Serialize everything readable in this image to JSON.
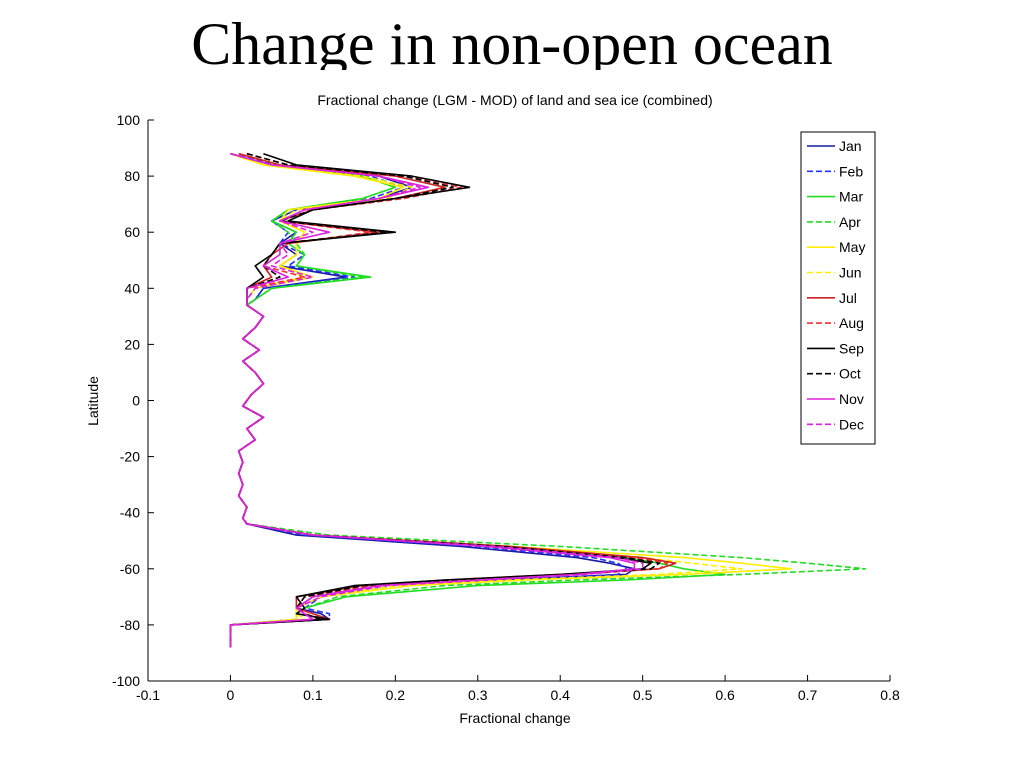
{
  "slide": {
    "title": "Change in non-open ocean"
  },
  "chart_data": {
    "type": "line",
    "title": "Fractional change (LGM - MOD) of land and sea ice (combined)",
    "xlabel": "Fractional change",
    "ylabel": "Latitude",
    "xlim": [
      -0.1,
      0.8
    ],
    "ylim": [
      -100,
      100
    ],
    "xticks": [
      -0.1,
      0,
      0.1,
      0.2,
      0.3,
      0.4,
      0.5,
      0.6,
      0.7,
      0.8
    ],
    "yticks": [
      100,
      80,
      60,
      40,
      20,
      0,
      -20,
      -40,
      -60,
      -80,
      -100
    ],
    "xtick_labels": [
      "-0.1",
      "0",
      "0.1",
      "0.2",
      "0.3",
      "0.4",
      "0.5",
      "0.6",
      "0.7",
      "0.8"
    ],
    "ytick_labels": [
      "100",
      "80",
      "60",
      "40",
      "20",
      "0",
      "-20",
      "-40",
      "-60",
      "-80",
      "-100"
    ],
    "legend_position": "top-right",
    "grid": false,
    "tropics": {
      "lat": [
        34,
        30,
        26,
        22,
        18,
        14,
        10,
        6,
        2,
        -2,
        -6,
        -10,
        -14,
        -18,
        -22,
        -26,
        -30,
        -34,
        -38,
        -42
      ],
      "x": [
        0.02,
        0.04,
        0.03,
        0.015,
        0.035,
        0.015,
        0.03,
        0.04,
        0.025,
        0.015,
        0.04,
        0.02,
        0.03,
        0.01,
        0.015,
        0.01,
        0.015,
        0.01,
        0.02,
        0.015
      ]
    },
    "series": [
      {
        "name": "Jan",
        "color": "#1a1aa6",
        "dash": false,
        "nh_lat": [
          88,
          84,
          80,
          76,
          72,
          68,
          64,
          60,
          56,
          52,
          48,
          44,
          40,
          36
        ],
        "nh_x": [
          0.0,
          0.05,
          0.18,
          0.22,
          0.18,
          0.08,
          0.05,
          0.08,
          0.06,
          0.08,
          0.06,
          0.14,
          0.04,
          0.03
        ],
        "sh_lat": [
          -44,
          -48,
          -52,
          -56,
          -58,
          -60,
          -62,
          -64,
          -66,
          -70,
          -74,
          -76,
          -78,
          -80,
          -84,
          -88
        ],
        "sh_x": [
          0.02,
          0.08,
          0.28,
          0.42,
          0.46,
          0.49,
          0.48,
          0.32,
          0.18,
          0.1,
          0.08,
          0.11,
          0.12,
          0.0,
          0.0,
          0.0
        ]
      },
      {
        "name": "Feb",
        "color": "#2233ff",
        "dash": true,
        "nh_lat": [
          88,
          84,
          80,
          76,
          72,
          68,
          64,
          60,
          56,
          52,
          48,
          44,
          40,
          36
        ],
        "nh_x": [
          0.0,
          0.06,
          0.17,
          0.21,
          0.17,
          0.08,
          0.05,
          0.07,
          0.06,
          0.09,
          0.07,
          0.15,
          0.04,
          0.03
        ],
        "sh_lat": [
          -44,
          -48,
          -52,
          -56,
          -58,
          -60,
          -62,
          -64,
          -66,
          -70,
          -74,
          -76,
          -78,
          -80,
          -84,
          -88
        ],
        "sh_x": [
          0.02,
          0.09,
          0.3,
          0.44,
          0.47,
          0.48,
          0.47,
          0.34,
          0.2,
          0.11,
          0.09,
          0.12,
          0.12,
          0.0,
          0.0,
          0.0
        ]
      },
      {
        "name": "Mar",
        "color": "#22dd22",
        "dash": false,
        "nh_lat": [
          88,
          84,
          80,
          76,
          72,
          68,
          64,
          60,
          56,
          52,
          48,
          44,
          40,
          36
        ],
        "nh_x": [
          0.0,
          0.05,
          0.16,
          0.2,
          0.16,
          0.07,
          0.05,
          0.08,
          0.07,
          0.09,
          0.08,
          0.17,
          0.05,
          0.03
        ],
        "sh_lat": [
          -44,
          -48,
          -52,
          -56,
          -58,
          -60,
          -62,
          -64,
          -66,
          -70,
          -74,
          -76,
          -78,
          -80,
          -84,
          -88
        ],
        "sh_x": [
          0.02,
          0.1,
          0.33,
          0.48,
          0.52,
          0.55,
          0.6,
          0.48,
          0.3,
          0.14,
          0.09,
          0.08,
          0.08,
          0.0,
          0.0,
          0.0
        ]
      },
      {
        "name": "Apr",
        "color": "#22dd22",
        "dash": true,
        "nh_lat": [
          88,
          84,
          80,
          76,
          72,
          68,
          64,
          60,
          56,
          52,
          48,
          44,
          40,
          36
        ],
        "nh_x": [
          0.0,
          0.05,
          0.16,
          0.2,
          0.16,
          0.07,
          0.05,
          0.07,
          0.08,
          0.09,
          0.08,
          0.16,
          0.05,
          0.03
        ],
        "sh_lat": [
          -44,
          -48,
          -52,
          -56,
          -58,
          -60,
          -62,
          -64,
          -66,
          -70,
          -74,
          -76,
          -78,
          -80,
          -84,
          -88
        ],
        "sh_x": [
          0.02,
          0.12,
          0.4,
          0.62,
          0.7,
          0.77,
          0.62,
          0.42,
          0.26,
          0.13,
          0.09,
          0.08,
          0.08,
          0.0,
          0.0,
          0.0
        ]
      },
      {
        "name": "May",
        "color": "#ffee00",
        "dash": false,
        "nh_lat": [
          88,
          84,
          80,
          76,
          72,
          68,
          64,
          60,
          56,
          52,
          48,
          44,
          40,
          36
        ],
        "nh_x": [
          0.0,
          0.04,
          0.15,
          0.21,
          0.18,
          0.07,
          0.06,
          0.09,
          0.08,
          0.08,
          0.06,
          0.1,
          0.03,
          0.02
        ],
        "sh_lat": [
          -44,
          -48,
          -52,
          -56,
          -58,
          -60,
          -62,
          -64,
          -66,
          -70,
          -74,
          -76,
          -78,
          -80,
          -84,
          -88
        ],
        "sh_x": [
          0.02,
          0.1,
          0.34,
          0.55,
          0.62,
          0.68,
          0.55,
          0.36,
          0.22,
          0.11,
          0.08,
          0.08,
          0.08,
          0.0,
          0.0,
          0.0
        ]
      },
      {
        "name": "Jun",
        "color": "#ffee00",
        "dash": true,
        "nh_lat": [
          88,
          84,
          80,
          76,
          72,
          68,
          64,
          60,
          56,
          52,
          48,
          44,
          40,
          36
        ],
        "nh_x": [
          0.0,
          0.04,
          0.16,
          0.22,
          0.19,
          0.08,
          0.06,
          0.09,
          0.08,
          0.08,
          0.06,
          0.09,
          0.03,
          0.02
        ],
        "sh_lat": [
          -44,
          -48,
          -52,
          -56,
          -58,
          -60,
          -62,
          -64,
          -66,
          -70,
          -74,
          -76,
          -78,
          -80,
          -84,
          -88
        ],
        "sh_x": [
          0.02,
          0.1,
          0.32,
          0.5,
          0.56,
          0.62,
          0.52,
          0.34,
          0.2,
          0.11,
          0.08,
          0.08,
          0.09,
          0.0,
          0.0,
          0.0
        ]
      },
      {
        "name": "Jul",
        "color": "#cc2222",
        "dash": false,
        "nh_lat": [
          88,
          84,
          80,
          76,
          72,
          68,
          64,
          60,
          56,
          52,
          48,
          44,
          40,
          36
        ],
        "nh_x": [
          0.01,
          0.06,
          0.2,
          0.26,
          0.2,
          0.1,
          0.06,
          0.18,
          0.07,
          0.05,
          0.04,
          0.05,
          0.02,
          0.02
        ],
        "sh_lat": [
          -44,
          -48,
          -52,
          -56,
          -58,
          -60,
          -62,
          -64,
          -66,
          -70,
          -74,
          -76,
          -78,
          -80,
          -84,
          -88
        ],
        "sh_x": [
          0.02,
          0.1,
          0.34,
          0.5,
          0.54,
          0.52,
          0.4,
          0.26,
          0.16,
          0.08,
          0.08,
          0.1,
          0.12,
          0.0,
          0.0,
          0.0
        ]
      },
      {
        "name": "Aug",
        "color": "#ee3333",
        "dash": true,
        "nh_lat": [
          88,
          84,
          80,
          76,
          72,
          68,
          64,
          60,
          56,
          52,
          48,
          44,
          40,
          36
        ],
        "nh_x": [
          0.02,
          0.07,
          0.21,
          0.28,
          0.21,
          0.1,
          0.06,
          0.17,
          0.07,
          0.05,
          0.04,
          0.09,
          0.02,
          0.02
        ],
        "sh_lat": [
          -44,
          -48,
          -52,
          -56,
          -58,
          -60,
          -62,
          -64,
          -66,
          -70,
          -74,
          -76,
          -78,
          -80,
          -84,
          -88
        ],
        "sh_x": [
          0.02,
          0.1,
          0.33,
          0.49,
          0.53,
          0.52,
          0.42,
          0.28,
          0.17,
          0.09,
          0.08,
          0.1,
          0.11,
          0.0,
          0.0,
          0.0
        ]
      },
      {
        "name": "Sep",
        "color": "#000000",
        "dash": false,
        "nh_lat": [
          88,
          84,
          80,
          76,
          72,
          68,
          64,
          60,
          56,
          52,
          48,
          44,
          40,
          36
        ],
        "nh_x": [
          0.04,
          0.08,
          0.22,
          0.29,
          0.2,
          0.1,
          0.07,
          0.2,
          0.06,
          0.05,
          0.03,
          0.04,
          0.02,
          0.02
        ],
        "sh_lat": [
          -44,
          -48,
          -52,
          -56,
          -58,
          -60,
          -62,
          -64,
          -66,
          -70,
          -74,
          -76,
          -78,
          -80,
          -84,
          -88
        ],
        "sh_x": [
          0.02,
          0.1,
          0.32,
          0.47,
          0.51,
          0.5,
          0.4,
          0.26,
          0.15,
          0.08,
          0.09,
          0.08,
          0.12,
          0.0,
          0.0,
          0.0
        ]
      },
      {
        "name": "Oct",
        "color": "#000000",
        "dash": true,
        "nh_lat": [
          88,
          84,
          80,
          76,
          72,
          68,
          64,
          60,
          56,
          52,
          48,
          44,
          40,
          36
        ],
        "nh_x": [
          0.02,
          0.07,
          0.21,
          0.27,
          0.2,
          0.1,
          0.06,
          0.19,
          0.06,
          0.05,
          0.04,
          0.06,
          0.02,
          0.02
        ],
        "sh_lat": [
          -44,
          -48,
          -52,
          -56,
          -58,
          -60,
          -62,
          -64,
          -66,
          -70,
          -74,
          -76,
          -78,
          -80,
          -84,
          -88
        ],
        "sh_x": [
          0.02,
          0.1,
          0.33,
          0.48,
          0.52,
          0.51,
          0.41,
          0.27,
          0.16,
          0.09,
          0.08,
          0.09,
          0.11,
          0.0,
          0.0,
          0.0
        ]
      },
      {
        "name": "Nov",
        "color": "#dd22dd",
        "dash": false,
        "nh_lat": [
          88,
          84,
          80,
          76,
          72,
          68,
          64,
          60,
          56,
          52,
          48,
          44,
          40,
          36
        ],
        "nh_x": [
          0.0,
          0.05,
          0.18,
          0.24,
          0.18,
          0.09,
          0.06,
          0.12,
          0.06,
          0.06,
          0.04,
          0.07,
          0.02,
          0.02
        ],
        "sh_lat": [
          -44,
          -48,
          -52,
          -56,
          -58,
          -60,
          -62,
          -64,
          -66,
          -70,
          -74,
          -76,
          -78,
          -80,
          -84,
          -88
        ],
        "sh_x": [
          0.02,
          0.1,
          0.31,
          0.46,
          0.49,
          0.49,
          0.42,
          0.3,
          0.18,
          0.1,
          0.08,
          0.09,
          0.1,
          0.0,
          0.0,
          0.0
        ]
      },
      {
        "name": "Dec",
        "color": "#dd22dd",
        "dash": true,
        "nh_lat": [
          88,
          84,
          80,
          76,
          72,
          68,
          64,
          60,
          56,
          52,
          48,
          44,
          40,
          36
        ],
        "nh_x": [
          0.0,
          0.05,
          0.18,
          0.23,
          0.18,
          0.09,
          0.06,
          0.1,
          0.06,
          0.07,
          0.05,
          0.1,
          0.03,
          0.02
        ],
        "sh_lat": [
          -44,
          -48,
          -52,
          -56,
          -58,
          -60,
          -62,
          -64,
          -66,
          -70,
          -74,
          -76,
          -78,
          -80,
          -84,
          -88
        ],
        "sh_x": [
          0.02,
          0.1,
          0.32,
          0.47,
          0.5,
          0.5,
          0.43,
          0.31,
          0.19,
          0.11,
          0.08,
          0.09,
          0.1,
          0.0,
          0.0,
          0.0
        ]
      }
    ]
  }
}
